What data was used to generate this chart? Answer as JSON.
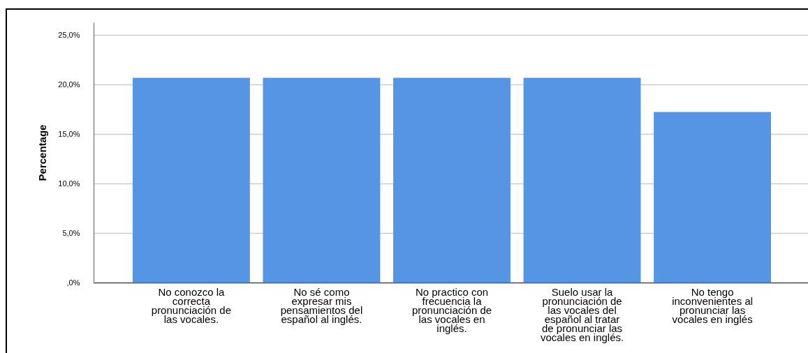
{
  "chart_data": {
    "type": "bar",
    "ylabel": "Percentage",
    "categories": [
      "No conozco la correcta pronunciación de las vocales.",
      "No sé como expresar mis pensamientos del español al inglés.",
      "No practico con frecuencia la pronunciación de las vocales en inglés.",
      "Suelo usar la pronunciación de las vocales del español al tratar de pronunciar las vocales en inglés.",
      "No tengo inconvenientes al pronunciar las vocales en inglés"
    ],
    "values": [
      20.69,
      20.69,
      20.69,
      20.69,
      17.24
    ],
    "color": "#5595e3",
    "ylim": [
      0,
      26.3
    ],
    "yticks": [
      {
        "value": 0,
        "label": ",0%"
      },
      {
        "value": 5,
        "label": "5,0%"
      },
      {
        "value": 10,
        "label": "10,0%"
      },
      {
        "value": 15,
        "label": "15,0%"
      },
      {
        "value": 20,
        "label": "20,0%"
      },
      {
        "value": 25,
        "label": "25,0%"
      }
    ],
    "grid": "y"
  }
}
